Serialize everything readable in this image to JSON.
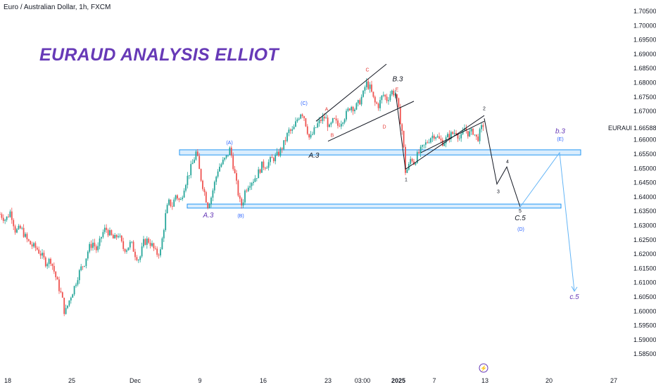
{
  "header": {
    "symbol_line": "Euro / Australian Dollar, 1h, FXCM"
  },
  "title": "EURAUD ANALYSIS ELLIOT",
  "price_tag": {
    "symbol": "EURAUD",
    "value": "1.66588"
  },
  "chart_data": {
    "type": "line",
    "title": "EURAUD ANALYSIS ELLIOT",
    "subtitle": "Euro / Australian Dollar, 1h, FXCM",
    "xlabel": "",
    "ylabel": "",
    "ylim": [
      1.58,
      1.71
    ],
    "y_ticks": [
      "1.70500",
      "1.70000",
      "1.69500",
      "1.69000",
      "1.68500",
      "1.68000",
      "1.67500",
      "1.67000",
      "1.66500",
      "1.66000",
      "1.65500",
      "1.65000",
      "1.64500",
      "1.64000",
      "1.63500",
      "1.63000",
      "1.62500",
      "1.62000",
      "1.61500",
      "1.61000",
      "1.60500",
      "1.60000",
      "1.59500",
      "1.59000",
      "1.58500"
    ],
    "x_ticks": [
      "18",
      "25",
      "Dec",
      "9",
      "16",
      "23",
      "03:00",
      "2025",
      "7",
      "13",
      "20",
      "27"
    ],
    "series": [
      {
        "values": [
          [
            0,
            1.634
          ],
          [
            8,
            1.632
          ],
          [
            15,
            1.635
          ],
          [
            22,
            1.628
          ],
          [
            30,
            1.629
          ],
          [
            38,
            1.625
          ],
          [
            45,
            1.623
          ],
          [
            52,
            1.622
          ],
          [
            58,
            1.62
          ],
          [
            65,
            1.617
          ],
          [
            72,
            1.618
          ],
          [
            78,
            1.613
          ],
          [
            84,
            1.608
          ],
          [
            88,
            1.605
          ],
          [
            92,
            1.599
          ],
          [
            96,
            1.602
          ],
          [
            100,
            1.605
          ],
          [
            105,
            1.608
          ],
          [
            110,
            1.612
          ],
          [
            115,
            1.615
          ],
          [
            120,
            1.617
          ],
          [
            126,
            1.622
          ],
          [
            132,
            1.624
          ],
          [
            138,
            1.621
          ],
          [
            145,
            1.627
          ],
          [
            150,
            1.629
          ],
          [
            156,
            1.627
          ],
          [
            162,
            1.625
          ],
          [
            168,
            1.627
          ],
          [
            175,
            1.622
          ],
          [
            180,
            1.622
          ],
          [
            186,
            1.624
          ],
          [
            192,
            1.62
          ],
          [
            198,
            1.618
          ],
          [
            204,
            1.624
          ],
          [
            210,
            1.625
          ],
          [
            216,
            1.623
          ],
          [
            222,
            1.62
          ],
          [
            228,
            1.621
          ],
          [
            232,
            1.628
          ],
          [
            236,
            1.635
          ],
          [
            240,
            1.638
          ],
          [
            245,
            1.637
          ],
          [
            250,
            1.641
          ],
          [
            256,
            1.638
          ],
          [
            262,
            1.644
          ],
          [
            268,
            1.648
          ],
          [
            274,
            1.652
          ],
          [
            279,
            1.656
          ],
          [
            284,
            1.648
          ],
          [
            290,
            1.642
          ],
          [
            295,
            1.637
          ],
          [
            300,
            1.64
          ],
          [
            305,
            1.645
          ],
          [
            310,
            1.65
          ],
          [
            316,
            1.652
          ],
          [
            322,
            1.654
          ],
          [
            327,
            1.657
          ],
          [
            332,
            1.65
          ],
          [
            337,
            1.643
          ],
          [
            341,
            1.638
          ],
          [
            344,
            1.637
          ],
          [
            348,
            1.642
          ],
          [
            354,
            1.645
          ],
          [
            360,
            1.646
          ],
          [
            366,
            1.648
          ],
          [
            372,
            1.651
          ],
          [
            378,
            1.651
          ],
          [
            385,
            1.653
          ],
          [
            392,
            1.654
          ],
          [
            398,
            1.656
          ],
          [
            404,
            1.659
          ],
          [
            410,
            1.663
          ],
          [
            416,
            1.663
          ],
          [
            422,
            1.667
          ],
          [
            428,
            1.67
          ],
          [
            432,
            1.668
          ],
          [
            436,
            1.664
          ],
          [
            440,
            1.66
          ],
          [
            444,
            1.662
          ],
          [
            450,
            1.665
          ],
          [
            456,
            1.667
          ],
          [
            462,
            1.668
          ],
          [
            468,
            1.664
          ],
          [
            474,
            1.667
          ],
          [
            480,
            1.665
          ],
          [
            486,
            1.667
          ],
          [
            492,
            1.669
          ],
          [
            498,
            1.672
          ],
          [
            504,
            1.671
          ],
          [
            510,
            1.673
          ],
          [
            516,
            1.676
          ],
          [
            520,
            1.68
          ],
          [
            526,
            1.678
          ],
          [
            532,
            1.673
          ],
          [
            538,
            1.672
          ],
          [
            544,
            1.676
          ],
          [
            550,
            1.674
          ],
          [
            556,
            1.677
          ],
          [
            562,
            1.676
          ],
          [
            568,
            1.668
          ],
          [
            572,
            1.662
          ],
          [
            576,
            1.649
          ],
          [
            580,
            1.65
          ],
          [
            584,
            1.654
          ],
          [
            588,
            1.652
          ],
          [
            594,
            1.655
          ],
          [
            600,
            1.657
          ],
          [
            606,
            1.659
          ],
          [
            612,
            1.661
          ],
          [
            618,
            1.662
          ],
          [
            624,
            1.66
          ],
          [
            630,
            1.659
          ],
          [
            636,
            1.661
          ],
          [
            642,
            1.662
          ],
          [
            648,
            1.663
          ],
          [
            654,
            1.66
          ],
          [
            660,
            1.664
          ],
          [
            666,
            1.662
          ],
          [
            672,
            1.663
          ],
          [
            678,
            1.66
          ],
          [
            684,
            1.664
          ],
          [
            688,
            1.666
          ]
        ]
      }
    ],
    "zones": [
      {
        "price_top": 1.6565,
        "price_bottom": 1.6547
      },
      {
        "price_top": 1.6375,
        "price_bottom": 1.6361
      }
    ],
    "projection": [
      [
        688,
        1.6675
      ],
      [
        706,
        1.6445
      ],
      [
        720,
        1.6505
      ],
      [
        739,
        1.6365
      ],
      [
        795,
        1.6555
      ],
      [
        816,
        1.607
      ]
    ],
    "labels": [
      {
        "text": "(A)",
        "price": 1.6585,
        "x": 326,
        "color": "#2962ff",
        "style": "small"
      },
      {
        "text": "A.3",
        "price": 1.6328,
        "x": 296,
        "color": "#673ab7",
        "style": "italic"
      },
      {
        "text": "(B)",
        "price": 1.6328,
        "x": 342,
        "color": "#2962ff",
        "style": "small"
      },
      {
        "text": "(C)",
        "price": 1.6723,
        "x": 432,
        "color": "#2962ff",
        "style": "small"
      },
      {
        "text": "A.3",
        "price": 1.6538,
        "x": 446,
        "color": "#131722",
        "style": "italic"
      },
      {
        "text": "A",
        "price": 1.6701,
        "x": 464,
        "color": "#e53935",
        "style": "small"
      },
      {
        "text": "B",
        "price": 1.661,
        "x": 472,
        "color": "#e53935",
        "style": "small"
      },
      {
        "text": "C",
        "price": 1.6839,
        "x": 522,
        "color": "#e53935",
        "style": "small"
      },
      {
        "text": "B.3",
        "price": 1.6805,
        "x": 565,
        "color": "#131722",
        "style": "italic"
      },
      {
        "text": "E",
        "price": 1.6771,
        "x": 564,
        "color": "#e53935",
        "style": "small"
      },
      {
        "text": "D",
        "price": 1.664,
        "x": 546,
        "color": "#e53935",
        "style": "small"
      },
      {
        "text": "1",
        "price": 1.6455,
        "x": 577,
        "color": "#131722",
        "style": "small"
      },
      {
        "text": "2",
        "price": 1.6704,
        "x": 688,
        "color": "#131722",
        "style": "small"
      },
      {
        "text": "4",
        "price": 1.6518,
        "x": 721,
        "color": "#131722",
        "style": "small"
      },
      {
        "text": "3",
        "price": 1.6413,
        "x": 708,
        "color": "#131722",
        "style": "small"
      },
      {
        "text": "5",
        "price": 1.6345,
        "x": 739,
        "color": "#131722",
        "style": "small"
      },
      {
        "text": "C.5",
        "price": 1.6318,
        "x": 739,
        "color": "#131722",
        "style": "italic"
      },
      {
        "text": "(D)",
        "price": 1.6282,
        "x": 740,
        "color": "#2962ff",
        "style": "small"
      },
      {
        "text": "b.3",
        "price": 1.6623,
        "x": 796,
        "color": "#673ab7",
        "style": "italic"
      },
      {
        "text": "(E)",
        "price": 1.6597,
        "x": 796,
        "color": "#2962ff",
        "style": "small"
      },
      {
        "text": "c.5",
        "price": 1.6043,
        "x": 816,
        "color": "#673ab7",
        "style": "italic"
      }
    ],
    "colors": {
      "up": "#26a69a",
      "down": "#ef5350",
      "zone_border": "#2196f3",
      "zone_fill": "#bbdefb",
      "projection": "#131722",
      "projection_2": "#64b5f6",
      "title": "#673ab7"
    }
  }
}
